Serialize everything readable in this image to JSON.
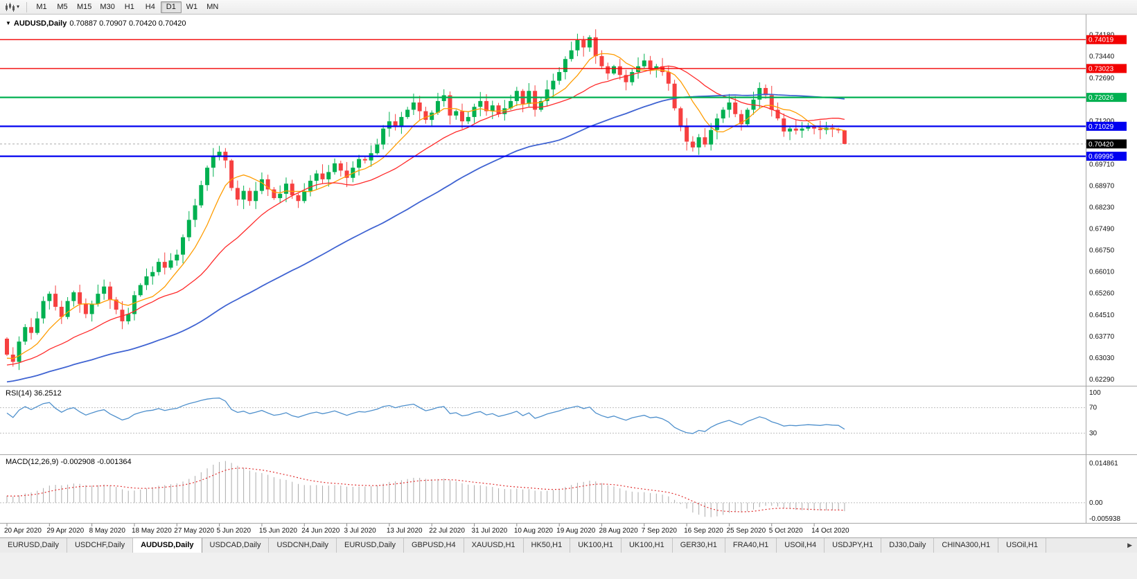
{
  "icons": {
    "title_marker": "▼",
    "chart_type_caret": "▾",
    "tab_scroll_right": "▶"
  },
  "toolbar": {
    "timeframes": [
      "M1",
      "M5",
      "M15",
      "M30",
      "H1",
      "H4",
      "D1",
      "W1",
      "MN"
    ],
    "active_timeframe": "D1"
  },
  "chart": {
    "title": "AUDUSD,Daily",
    "ohlc_display": "0.70887 0.70907 0.70420 0.70420",
    "open": "0.70887",
    "high": "0.70907",
    "low": "0.70420",
    "close": "0.70420"
  },
  "chart_data": {
    "type": "candlestick",
    "symbol": "AUDUSD",
    "period": "Daily",
    "colors": {
      "bull": "#00b050",
      "bear": "#f64040",
      "current_price_line": "#ababab",
      "current_price_box": "#000000"
    },
    "price_range": {
      "max": 0.74837,
      "min": 0.62123
    },
    "first_candle_open": 0.637,
    "last_candle": [
      0.70887,
      0.70907,
      0.7042,
      0.7042
    ],
    "closes": [
      0.6315,
      0.629,
      0.636,
      0.641,
      0.639,
      0.644,
      0.65,
      0.6525,
      0.648,
      0.6445,
      0.65,
      0.653,
      0.649,
      0.6455,
      0.649,
      0.6525,
      0.655,
      0.6505,
      0.647,
      0.643,
      0.6455,
      0.652,
      0.6555,
      0.6585,
      0.66,
      0.6635,
      0.6615,
      0.664,
      0.666,
      0.672,
      0.678,
      0.683,
      0.69,
      0.696,
      0.7,
      0.7015,
      0.6985,
      0.689,
      0.685,
      0.688,
      0.6845,
      0.688,
      0.692,
      0.6885,
      0.6855,
      0.687,
      0.6905,
      0.6865,
      0.6845,
      0.688,
      0.6915,
      0.694,
      0.692,
      0.6945,
      0.6975,
      0.695,
      0.6925,
      0.696,
      0.699,
      0.6985,
      0.701,
      0.704,
      0.7095,
      0.712,
      0.71,
      0.7135,
      0.716,
      0.7185,
      0.7155,
      0.7125,
      0.715,
      0.719,
      0.721,
      0.714,
      0.7155,
      0.712,
      0.7135,
      0.717,
      0.719,
      0.7155,
      0.7175,
      0.7145,
      0.7165,
      0.719,
      0.7225,
      0.718,
      0.7225,
      0.716,
      0.719,
      0.723,
      0.726,
      0.729,
      0.7335,
      0.7365,
      0.74,
      0.7375,
      0.741,
      0.7345,
      0.731,
      0.7285,
      0.731,
      0.728,
      0.7255,
      0.729,
      0.731,
      0.733,
      0.73,
      0.731,
      0.729,
      0.725,
      0.7165,
      0.7105,
      0.705,
      0.703,
      0.7065,
      0.704,
      0.709,
      0.713,
      0.716,
      0.7185,
      0.7145,
      0.711,
      0.716,
      0.7195,
      0.7235,
      0.721,
      0.716,
      0.713,
      0.7085,
      0.7095,
      0.7088,
      0.7095,
      0.71,
      0.7095,
      0.709,
      0.7098,
      0.7092,
      0.70887,
      0.7042
    ],
    "x_labels": [
      "20 Apr 2020",
      "29 Apr 2020",
      "8 May 2020",
      "18 May 2020",
      "27 May 2020",
      "5 Jun 2020",
      "15 Jun 2020",
      "24 Jun 2020",
      "3 Jul 2020",
      "13 Jul 2020",
      "22 Jul 2020",
      "31 Jul 2020",
      "10 Aug 2020",
      "19 Aug 2020",
      "28 Aug 2020",
      "7 Sep 2020",
      "16 Sep 2020",
      "25 Sep 2020",
      "5 Oct 2020",
      "14 Oct 2020"
    ],
    "x_label_step": 7,
    "y_axis_ticks": [
      "0.74180",
      "0.73440",
      "0.72690",
      "0.71950",
      "0.71200",
      "0.70460",
      "0.69710",
      "0.68970",
      "0.68230",
      "0.67490",
      "0.66750",
      "0.66010",
      "0.65260",
      "0.64510",
      "0.63770",
      "0.63030",
      "0.62290"
    ],
    "levels": [
      {
        "price": 0.74019,
        "label": "0.74019",
        "color": "#f20000",
        "width": 1.4
      },
      {
        "price": 0.73023,
        "label": "0.73023",
        "color": "#f20000",
        "width": 1.4
      },
      {
        "price": 0.72026,
        "label": "0.72026",
        "color": "#00b050",
        "width": 2.2
      },
      {
        "price": 0.71029,
        "label": "0.71029",
        "color": "#0000f0",
        "width": 2.2
      },
      {
        "price": 0.69995,
        "label": "0.69995",
        "color": "#0000f0",
        "width": 2.2
      }
    ],
    "current_price": {
      "value": 0.7042,
      "label": "0.70420"
    },
    "moving_averages": [
      {
        "name": "ma-fast",
        "period": 8,
        "color": "#ff9c00",
        "width": 1.3
      },
      {
        "name": "ma-mid",
        "period": 21,
        "color": "#ff2a2a",
        "width": 1.3
      },
      {
        "name": "ma-slow",
        "period": 55,
        "color": "#3f63d2",
        "width": 1.8
      }
    ],
    "indicators": {
      "rsi": {
        "label": "RSI(14)",
        "value_display": "36.2512",
        "period": 14,
        "overbought": 70,
        "oversold": 30,
        "axis_labels": [
          "100",
          "70",
          "30"
        ],
        "color": "#4d8fcc"
      },
      "macd": {
        "label": "MACD(12,26,9)",
        "value_display": "-0.002908 -0.001364",
        "fast": 12,
        "slow": 26,
        "signal": 9,
        "axis_labels": [
          "0.014861",
          "0.00",
          "-0.005938"
        ],
        "scale_max": 0.014861,
        "scale_min": -0.005938,
        "hist_color": "#ababab",
        "signal_color": "#e03030"
      }
    }
  },
  "tabs": {
    "items": [
      "EURUSD,Daily",
      "USDCHF,Daily",
      "AUDUSD,Daily",
      "USDCAD,Daily",
      "USDCNH,Daily",
      "EURUSD,Daily",
      "GBPUSD,H4",
      "XAUUSD,H1",
      "HK50,H1",
      "UK100,H1",
      "UK100,H1",
      "GER30,H1",
      "FRA40,H1",
      "USOil,H4",
      "USDJPY,H1",
      "DJ30,Daily",
      "CHINA300,H1",
      "USOil,H1"
    ],
    "active_index": 2,
    "scroll_right_icon": "▶"
  }
}
